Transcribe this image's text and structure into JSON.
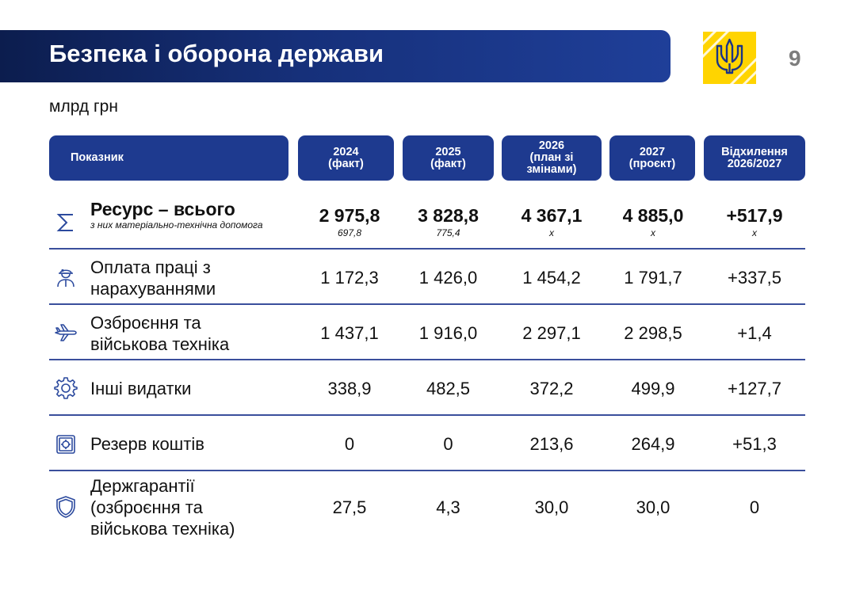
{
  "header": {
    "title": "Безпека і оборона держави",
    "page_number": "9",
    "unit": "млрд грн"
  },
  "colors": {
    "banner": "#1a3487",
    "header_cell": "#1e3a8f",
    "emblem_yellow": "#ffd400",
    "divider": "#3a4f9c"
  },
  "table": {
    "columns": [
      "Показник",
      "2024\n(факт)",
      "2025\n(факт)",
      "2026\n(план зі\nзмінами)",
      "2027\n(проєкт)",
      "Відхилення\n2026/2027"
    ],
    "total": {
      "icon": "sigma-icon",
      "label": "Ресурс – всього",
      "sublabel": "з них матеріально-технічна допомога",
      "values": [
        "2 975,8",
        "3 828,8",
        "4 367,1",
        "4 885,0",
        "+517,9"
      ],
      "subvalues": [
        "697,8",
        "775,4",
        "x",
        "x",
        "x"
      ]
    },
    "rows": [
      {
        "icon": "soldier-icon",
        "label": "Оплата праці з\nнарахуваннями",
        "values": [
          "1 172,3",
          "1 426,0",
          "1 454,2",
          "1 791,7",
          "+337,5"
        ]
      },
      {
        "icon": "aircraft-icon",
        "label": "Озброєння та\nвійськова техніка",
        "values": [
          "1 437,1",
          "1 916,0",
          "2 297,1",
          "2 298,5",
          "+1,4"
        ]
      },
      {
        "icon": "gear-icon",
        "label": "Інші видатки",
        "values": [
          "338,9",
          "482,5",
          "372,2",
          "499,9",
          "+127,7"
        ]
      },
      {
        "icon": "safe-icon",
        "label": "Резерв коштів",
        "values": [
          "0",
          "0",
          "213,6",
          "264,9",
          "+51,3"
        ]
      },
      {
        "icon": "shield-icon",
        "label": "Держгарантії\n(озброєння та\nвійськова техніка)",
        "values": [
          "27,5",
          "4,3",
          "30,0",
          "30,0",
          "0"
        ]
      }
    ]
  }
}
